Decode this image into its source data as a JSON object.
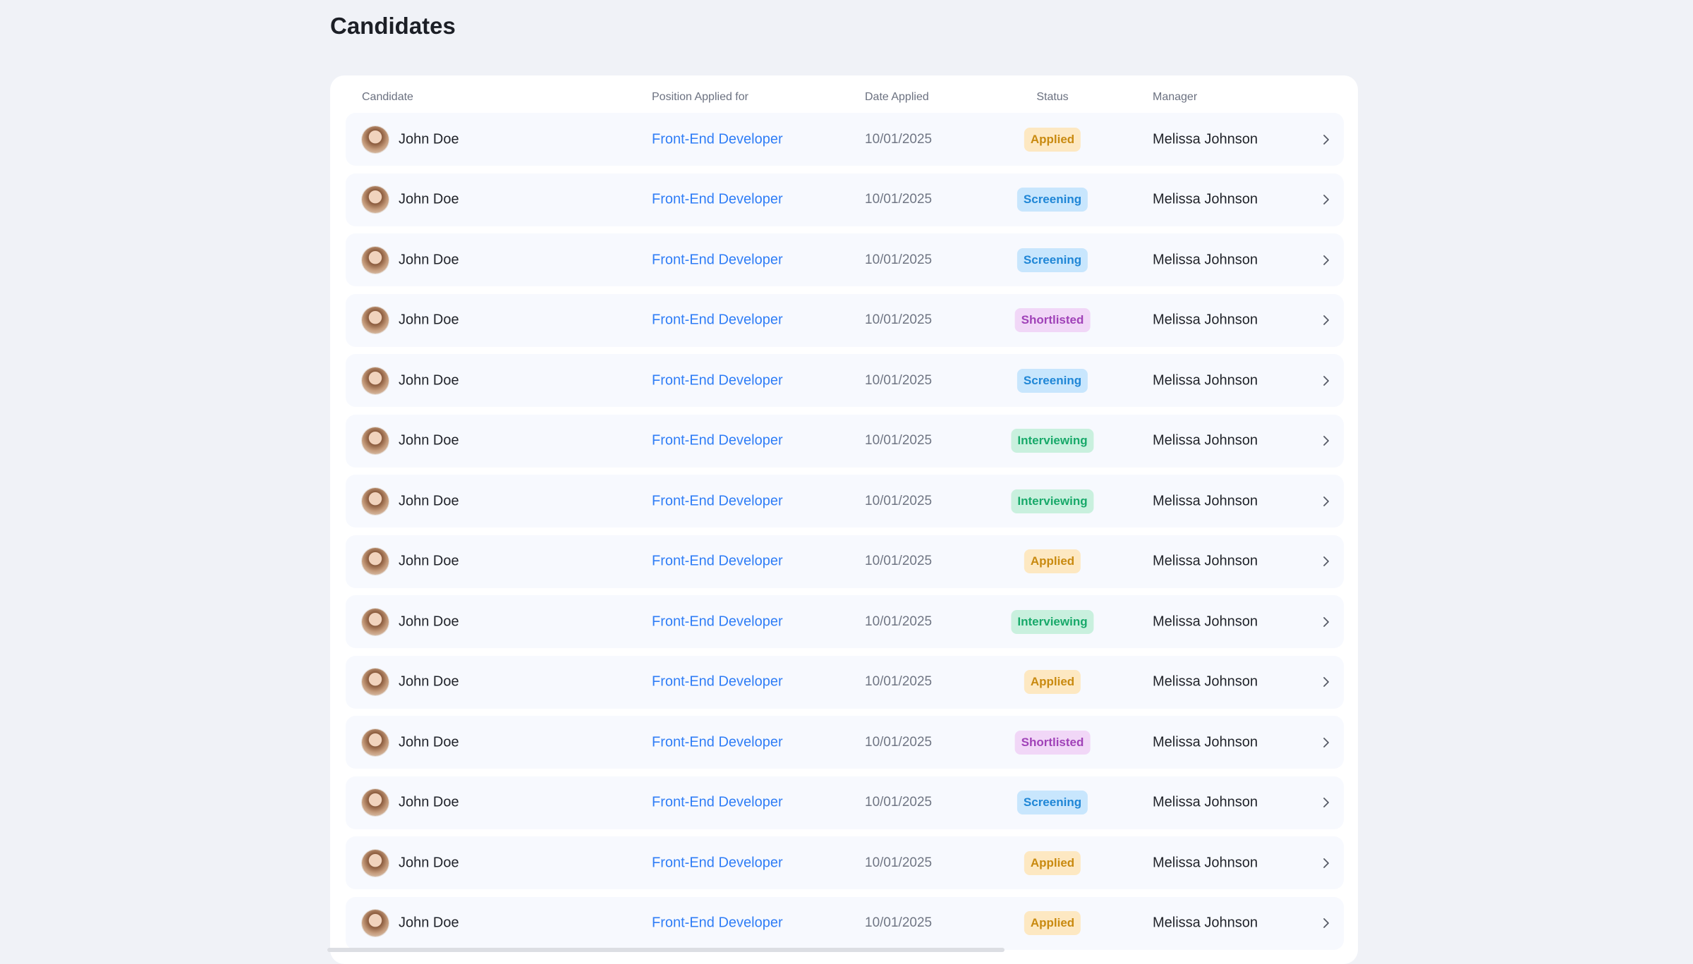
{
  "page": {
    "title": "Candidates"
  },
  "table": {
    "headers": {
      "candidate": "Candidate",
      "position": "Position Applied for",
      "date": "Date Applied",
      "status": "Status",
      "manager": "Manager"
    },
    "status_colors": {
      "Applied": {
        "bg": "#fde8c2",
        "fg": "#c98a10"
      },
      "Screening": {
        "bg": "#c8e6fd",
        "fg": "#1f86d6"
      },
      "Shortlisted": {
        "bg": "#f1d7f7",
        "fg": "#a042b8"
      },
      "Interviewing": {
        "bg": "#c9f0de",
        "fg": "#18a96a"
      }
    },
    "rows": [
      {
        "name": "John Doe",
        "position": "Front-End Developer",
        "date": "10/01/2025",
        "status": "Applied",
        "manager": "Melissa Johnson"
      },
      {
        "name": "John Doe",
        "position": "Front-End Developer",
        "date": "10/01/2025",
        "status": "Screening",
        "manager": "Melissa Johnson"
      },
      {
        "name": "John Doe",
        "position": "Front-End Developer",
        "date": "10/01/2025",
        "status": "Screening",
        "manager": "Melissa Johnson"
      },
      {
        "name": "John Doe",
        "position": "Front-End Developer",
        "date": "10/01/2025",
        "status": "Shortlisted",
        "manager": "Melissa Johnson"
      },
      {
        "name": "John Doe",
        "position": "Front-End Developer",
        "date": "10/01/2025",
        "status": "Screening",
        "manager": "Melissa Johnson"
      },
      {
        "name": "John Doe",
        "position": "Front-End Developer",
        "date": "10/01/2025",
        "status": "Interviewing",
        "manager": "Melissa Johnson"
      },
      {
        "name": "John Doe",
        "position": "Front-End Developer",
        "date": "10/01/2025",
        "status": "Interviewing",
        "manager": "Melissa Johnson"
      },
      {
        "name": "John Doe",
        "position": "Front-End Developer",
        "date": "10/01/2025",
        "status": "Applied",
        "manager": "Melissa Johnson"
      },
      {
        "name": "John Doe",
        "position": "Front-End Developer",
        "date": "10/01/2025",
        "status": "Interviewing",
        "manager": "Melissa Johnson"
      },
      {
        "name": "John Doe",
        "position": "Front-End Developer",
        "date": "10/01/2025",
        "status": "Applied",
        "manager": "Melissa Johnson"
      },
      {
        "name": "John Doe",
        "position": "Front-End Developer",
        "date": "10/01/2025",
        "status": "Shortlisted",
        "manager": "Melissa Johnson"
      },
      {
        "name": "John Doe",
        "position": "Front-End Developer",
        "date": "10/01/2025",
        "status": "Screening",
        "manager": "Melissa Johnson"
      },
      {
        "name": "John Doe",
        "position": "Front-End Developer",
        "date": "10/01/2025",
        "status": "Applied",
        "manager": "Melissa Johnson"
      },
      {
        "name": "John Doe",
        "position": "Front-End Developer",
        "date": "10/01/2025",
        "status": "Applied",
        "manager": "Melissa Johnson"
      }
    ]
  }
}
